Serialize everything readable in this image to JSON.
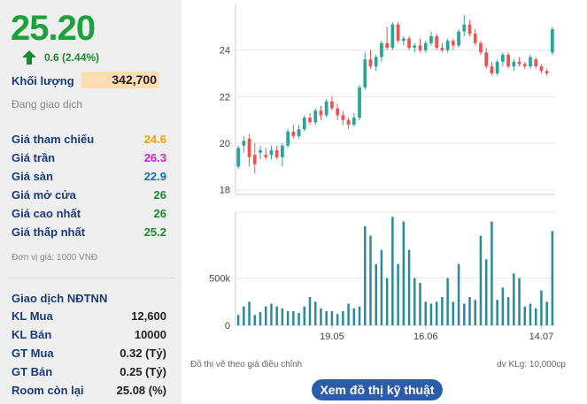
{
  "quote": {
    "price": "25.20",
    "change": "0.6 (2.44%)",
    "volume_label": "Khối lượng",
    "volume": "342,700",
    "status": "Đang giao dịch"
  },
  "stats": [
    {
      "label": "Giá tham chiếu",
      "value": "24.6",
      "color": "#f0a000"
    },
    {
      "label": "Giá trần",
      "value": "26.3",
      "color": "#d81ad8"
    },
    {
      "label": "Giá sàn",
      "value": "22.9",
      "color": "#1a6fa8"
    },
    {
      "label": "Giá mở cửa",
      "value": "26",
      "color": "#1a8a2e"
    },
    {
      "label": "Giá cao nhất",
      "value": "26",
      "color": "#1a8a2e"
    },
    {
      "label": "Giá thấp nhất",
      "value": "25.2",
      "color": "#1a8a2e"
    }
  ],
  "price_unit": "Đơn vị giá: 1000 VNĐ",
  "foreign": {
    "title": "Giao dịch NĐTNN",
    "rows": [
      {
        "label": "KL Mua",
        "value": "12,600"
      },
      {
        "label": "KL Bán",
        "value": "10000"
      },
      {
        "label": "GT Mua",
        "value": "0.32 (Tỷ)"
      },
      {
        "label": "GT Bán",
        "value": "0.25 (Tỷ)"
      },
      {
        "label": "Room còn lại",
        "value": "25.08 (%)"
      }
    ]
  },
  "chart_footnote_left": "Đồ thị vẽ theo giá điều chỉnh",
  "chart_footnote_right": "dv KLg: 10,000cp",
  "button_label": "Xem đồ thị kỹ thuật",
  "colors": {
    "up": "#26a69a",
    "down": "#ef5350",
    "price": "#1aa33b",
    "volume_bar": "#2a8a9a"
  },
  "chart_data": {
    "type": "candlestick",
    "price_ticks": [
      "18",
      "20",
      "22",
      "24"
    ],
    "price_range": [
      17.8,
      26.0
    ],
    "volume_ticks": [
      "0",
      "500k"
    ],
    "volume_range": [
      0,
      1200000
    ],
    "x_tick_labels": [
      "19.05",
      "16.06",
      "14.07"
    ],
    "candles": [
      {
        "o": 19.0,
        "h": 19.9,
        "l": 18.9,
        "c": 19.8
      },
      {
        "o": 19.9,
        "h": 20.3,
        "l": 19.6,
        "c": 20.1
      },
      {
        "o": 20.2,
        "h": 20.4,
        "l": 19.0,
        "c": 19.4
      },
      {
        "o": 19.5,
        "h": 20.0,
        "l": 18.7,
        "c": 19.1
      },
      {
        "o": 19.6,
        "h": 19.9,
        "l": 19.3,
        "c": 19.7
      },
      {
        "o": 19.5,
        "h": 19.8,
        "l": 19.3,
        "c": 19.4
      },
      {
        "o": 19.5,
        "h": 19.9,
        "l": 19.3,
        "c": 19.7
      },
      {
        "o": 19.7,
        "h": 19.9,
        "l": 19.3,
        "c": 19.4
      },
      {
        "o": 19.4,
        "h": 20.0,
        "l": 19.0,
        "c": 19.9
      },
      {
        "o": 19.9,
        "h": 20.6,
        "l": 19.8,
        "c": 20.5
      },
      {
        "o": 20.5,
        "h": 20.8,
        "l": 20.2,
        "c": 20.3
      },
      {
        "o": 20.3,
        "h": 20.8,
        "l": 20.2,
        "c": 20.6
      },
      {
        "o": 20.6,
        "h": 21.2,
        "l": 20.5,
        "c": 21.1
      },
      {
        "o": 21.1,
        "h": 21.3,
        "l": 20.8,
        "c": 20.9
      },
      {
        "o": 20.9,
        "h": 21.5,
        "l": 20.8,
        "c": 21.4
      },
      {
        "o": 21.4,
        "h": 21.6,
        "l": 21.0,
        "c": 21.2
      },
      {
        "o": 21.2,
        "h": 21.9,
        "l": 21.1,
        "c": 21.8
      },
      {
        "o": 21.8,
        "h": 22.0,
        "l": 21.4,
        "c": 21.5
      },
      {
        "o": 21.5,
        "h": 21.7,
        "l": 21.0,
        "c": 21.2
      },
      {
        "o": 21.2,
        "h": 21.4,
        "l": 20.8,
        "c": 21.0
      },
      {
        "o": 21.0,
        "h": 21.1,
        "l": 20.6,
        "c": 20.8
      },
      {
        "o": 20.8,
        "h": 21.3,
        "l": 20.7,
        "c": 21.1
      },
      {
        "o": 21.1,
        "h": 22.5,
        "l": 21.0,
        "c": 22.4
      },
      {
        "o": 22.4,
        "h": 23.9,
        "l": 22.3,
        "c": 23.6
      },
      {
        "o": 23.6,
        "h": 24.0,
        "l": 23.2,
        "c": 23.3
      },
      {
        "o": 23.3,
        "h": 23.8,
        "l": 23.1,
        "c": 23.7
      },
      {
        "o": 23.7,
        "h": 24.4,
        "l": 23.5,
        "c": 24.3
      },
      {
        "o": 24.3,
        "h": 25.0,
        "l": 24.0,
        "c": 24.1
      },
      {
        "o": 24.1,
        "h": 25.2,
        "l": 24.0,
        "c": 25.1
      },
      {
        "o": 25.1,
        "h": 25.2,
        "l": 24.3,
        "c": 24.4
      },
      {
        "o": 24.4,
        "h": 24.6,
        "l": 24.2,
        "c": 24.5
      },
      {
        "o": 24.5,
        "h": 24.6,
        "l": 24.0,
        "c": 24.1
      },
      {
        "o": 24.1,
        "h": 24.3,
        "l": 23.9,
        "c": 24.2
      },
      {
        "o": 24.2,
        "h": 24.5,
        "l": 23.9,
        "c": 24.0
      },
      {
        "o": 24.0,
        "h": 24.4,
        "l": 23.9,
        "c": 24.3
      },
      {
        "o": 24.3,
        "h": 24.8,
        "l": 24.2,
        "c": 24.6
      },
      {
        "o": 24.6,
        "h": 24.7,
        "l": 24.0,
        "c": 24.1
      },
      {
        "o": 24.1,
        "h": 24.3,
        "l": 23.9,
        "c": 24.0
      },
      {
        "o": 24.0,
        "h": 24.5,
        "l": 23.9,
        "c": 24.4
      },
      {
        "o": 24.4,
        "h": 24.5,
        "l": 24.0,
        "c": 24.2
      },
      {
        "o": 24.2,
        "h": 24.9,
        "l": 24.1,
        "c": 24.8
      },
      {
        "o": 24.8,
        "h": 25.5,
        "l": 24.6,
        "c": 25.1
      },
      {
        "o": 25.1,
        "h": 25.3,
        "l": 24.6,
        "c": 24.7
      },
      {
        "o": 24.7,
        "h": 24.9,
        "l": 24.2,
        "c": 24.3
      },
      {
        "o": 24.3,
        "h": 24.4,
        "l": 23.8,
        "c": 23.9
      },
      {
        "o": 23.9,
        "h": 24.1,
        "l": 23.2,
        "c": 23.3
      },
      {
        "o": 23.3,
        "h": 23.5,
        "l": 22.9,
        "c": 23.0
      },
      {
        "o": 23.0,
        "h": 23.6,
        "l": 22.9,
        "c": 23.5
      },
      {
        "o": 23.5,
        "h": 23.9,
        "l": 23.3,
        "c": 23.8
      },
      {
        "o": 23.8,
        "h": 23.9,
        "l": 23.2,
        "c": 23.3
      },
      {
        "o": 23.3,
        "h": 23.6,
        "l": 23.1,
        "c": 23.5
      },
      {
        "o": 23.5,
        "h": 23.7,
        "l": 23.3,
        "c": 23.4
      },
      {
        "o": 23.4,
        "h": 23.5,
        "l": 23.2,
        "c": 23.3
      },
      {
        "o": 23.3,
        "h": 23.8,
        "l": 23.2,
        "c": 23.7
      },
      {
        "o": 23.6,
        "h": 23.7,
        "l": 23.2,
        "c": 23.3
      },
      {
        "o": 23.3,
        "h": 23.4,
        "l": 23.0,
        "c": 23.1
      },
      {
        "o": 23.1,
        "h": 23.2,
        "l": 22.9,
        "c": 23.0
      },
      {
        "o": 23.9,
        "h": 25.0,
        "l": 23.8,
        "c": 24.9
      }
    ],
    "volumes": [
      110000,
      200000,
      250000,
      110000,
      140000,
      200000,
      230000,
      200000,
      180000,
      150000,
      150000,
      130000,
      200000,
      300000,
      250000,
      180000,
      150000,
      150000,
      120000,
      150000,
      230000,
      180000,
      200000,
      1050000,
      950000,
      650000,
      800000,
      500000,
      1150000,
      650000,
      1100000,
      800000,
      500000,
      450000,
      250000,
      230000,
      250000,
      300000,
      500000,
      250000,
      650000,
      230000,
      300000,
      270000,
      950000,
      700000,
      1100000,
      270000,
      400000,
      300000,
      550000,
      500000,
      200000,
      230000,
      180000,
      370000,
      250000,
      1000000
    ]
  }
}
